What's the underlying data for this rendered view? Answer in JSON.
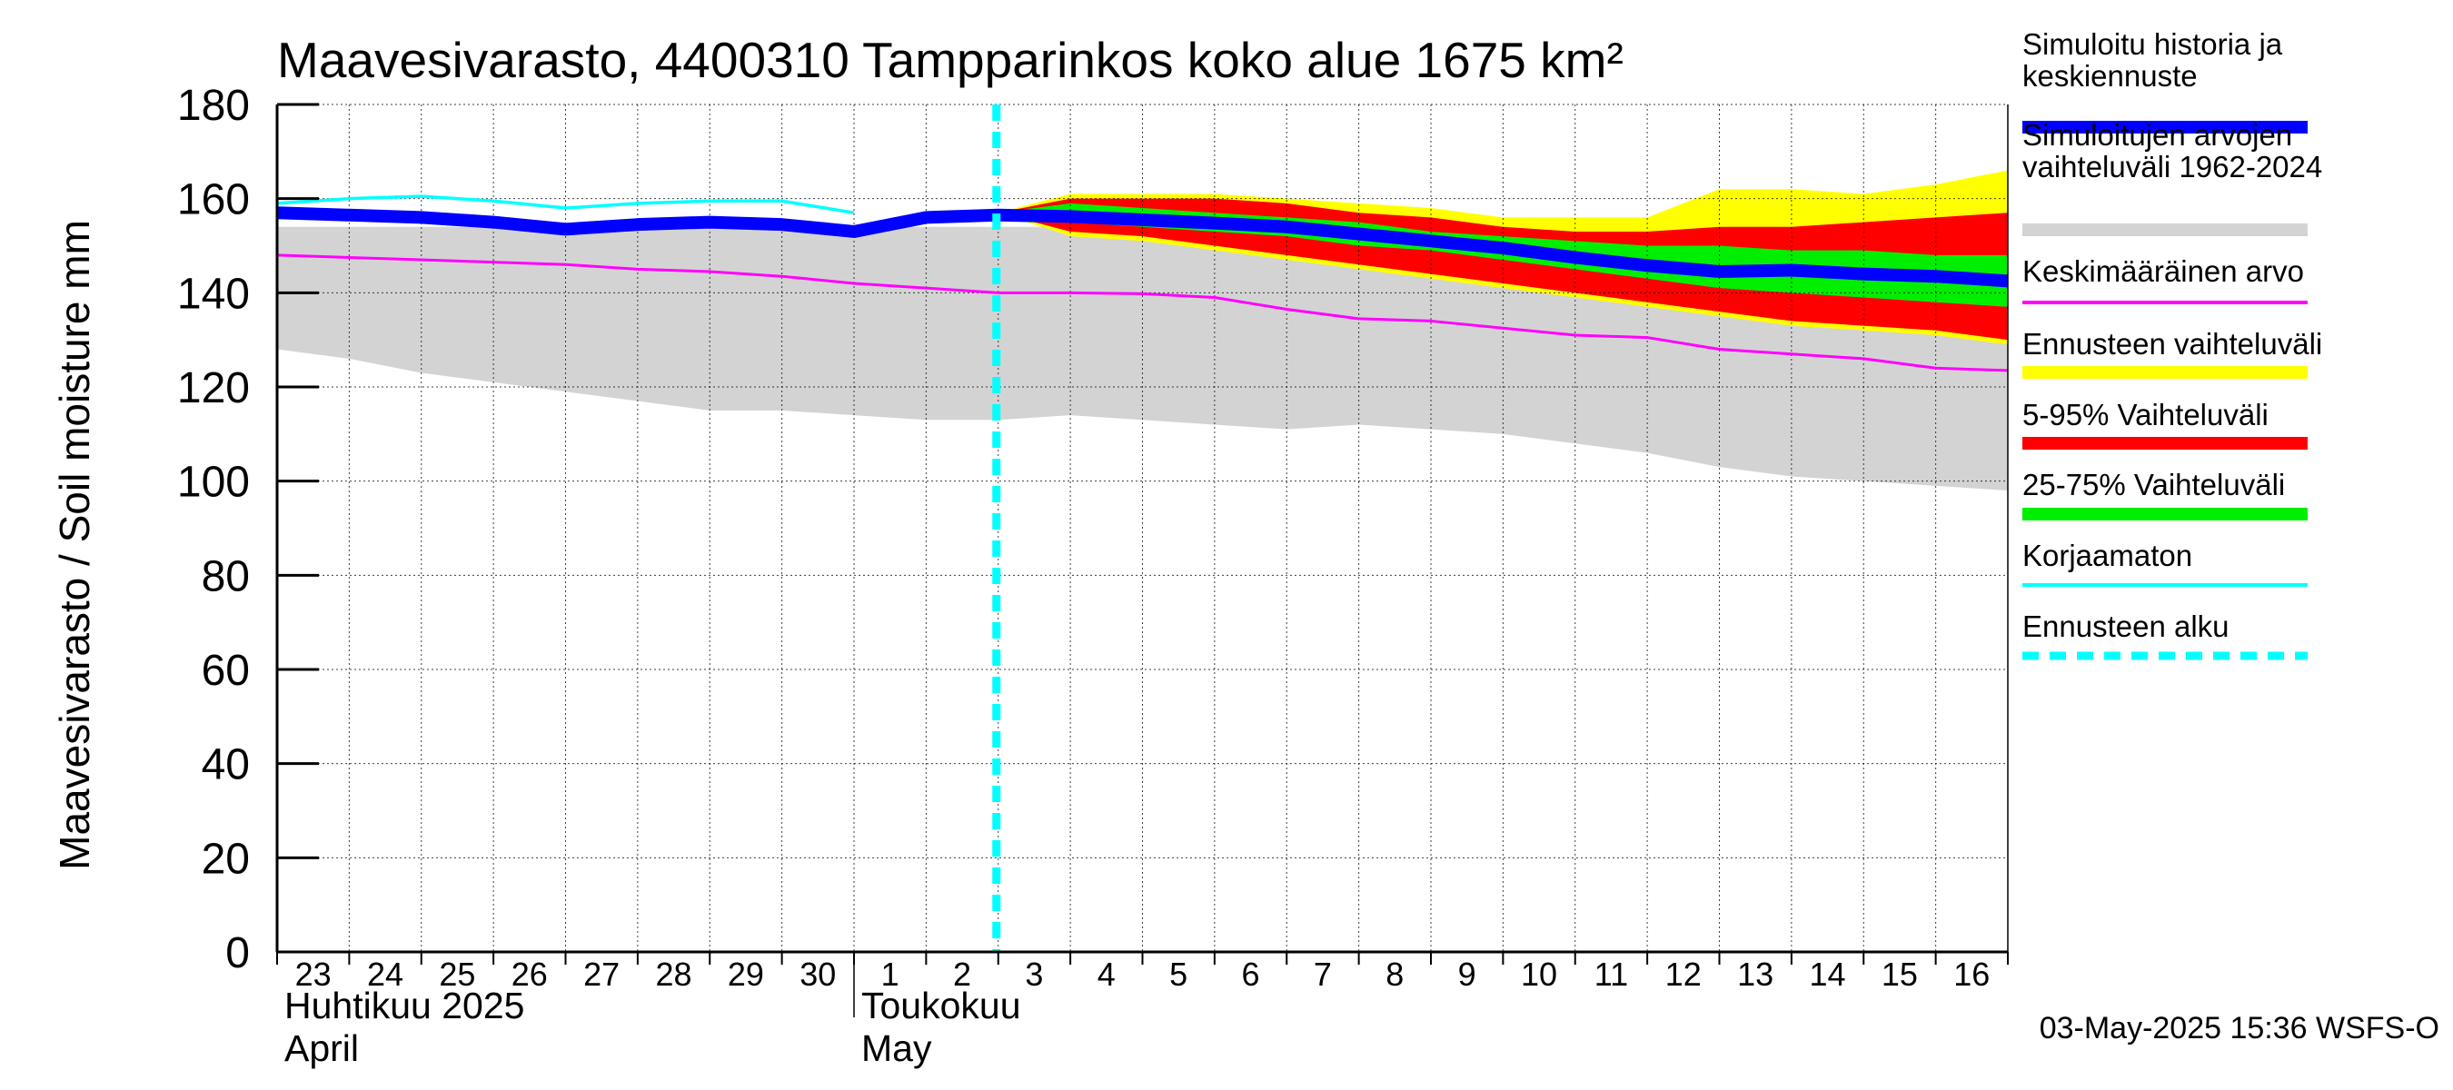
{
  "chart_data": {
    "type": "area",
    "title": "Maavesivarasto, 4400310 Tampparinkos koko alue 1675 km²",
    "ylabel": "Maavesivarasto / Soil moisture   mm",
    "ylim": [
      0,
      180
    ],
    "yticks": [
      0,
      20,
      40,
      60,
      80,
      100,
      120,
      140,
      160,
      180
    ],
    "x_days": [
      "23",
      "24",
      "25",
      "26",
      "27",
      "28",
      "29",
      "30",
      "1",
      "2",
      "3",
      "4",
      "5",
      "6",
      "7",
      "8",
      "9",
      "10",
      "11",
      "12",
      "13",
      "14",
      "15",
      "16"
    ],
    "x_range": [
      0,
      24
    ],
    "month_labels": [
      {
        "line1": "Huhtikuu  2025",
        "line2": "April",
        "start_day_index": 0
      },
      {
        "line1": "Toukokuu",
        "line2": "May",
        "start_day_index": 8
      }
    ],
    "month_divider_x": 8,
    "forecast_start_x": 10,
    "grid": true,
    "legend_position": "right",
    "legend": [
      {
        "label": "Simuloitu historia ja\nkeskiennuste",
        "color": "#0000ff",
        "style": "thick"
      },
      {
        "label": "Simuloitujen arvojen\nvaihteluväli 1962-2024",
        "color": "#d3d3d3",
        "style": "thick"
      },
      {
        "label": "Keskimääräinen arvo",
        "color": "#ff00ff",
        "style": "thin"
      },
      {
        "label": "Ennusteen vaihteluväli",
        "color": "#ffff00",
        "style": "thick"
      },
      {
        "label": "5-95% Vaihteluväli",
        "color": "#ff0000",
        "style": "thick"
      },
      {
        "label": "25-75% Vaihteluväli",
        "color": "#00ee00",
        "style": "thick"
      },
      {
        "label": "Korjaamaton",
        "color": "#00ffff",
        "style": "thin"
      },
      {
        "label": "Ennusteen alku",
        "color": "#00ffff",
        "style": "dashed"
      }
    ],
    "series": {
      "history_range": {
        "x": [
          0,
          1,
          2,
          3,
          4,
          5,
          6,
          7,
          8,
          9,
          10,
          11,
          12,
          13,
          14,
          15,
          16,
          17,
          18,
          19,
          20,
          21,
          22,
          23,
          24
        ],
        "upper": [
          154,
          154,
          154,
          154,
          154,
          154,
          154,
          154,
          154,
          154,
          154,
          154,
          154,
          153,
          152,
          152,
          151,
          150,
          149,
          148,
          147,
          146,
          146,
          146,
          146
        ],
        "lower": [
          128,
          126,
          123,
          121,
          119,
          117,
          115,
          115,
          114,
          113,
          113,
          114,
          113,
          112,
          111,
          112,
          111,
          110,
          108,
          106,
          103,
          101,
          100,
          99,
          98
        ]
      },
      "forecast_range": {
        "x": [
          10,
          11,
          12,
          13,
          14,
          15,
          16,
          17,
          18,
          19,
          20,
          21,
          22,
          23,
          24
        ],
        "upper": [
          157,
          161,
          161,
          161,
          160,
          159,
          158,
          156,
          156,
          156,
          162,
          162,
          161,
          163,
          166
        ],
        "lower": [
          157,
          152,
          151,
          149,
          147,
          145,
          143,
          141,
          139,
          137,
          135,
          133,
          132,
          131,
          129
        ]
      },
      "p5_95": {
        "x": [
          10,
          11,
          12,
          13,
          14,
          15,
          16,
          17,
          18,
          19,
          20,
          21,
          22,
          23,
          24
        ],
        "upper": [
          157,
          160,
          160,
          160,
          159,
          157,
          156,
          154,
          153,
          153,
          154,
          154,
          155,
          156,
          157
        ],
        "lower": [
          157,
          153,
          152,
          150,
          148,
          146,
          144,
          142,
          140,
          138,
          136,
          134,
          133,
          132,
          130
        ]
      },
      "p25_75": {
        "x": [
          10,
          11,
          12,
          13,
          14,
          15,
          16,
          17,
          18,
          19,
          20,
          21,
          22,
          23,
          24
        ],
        "upper": [
          157,
          159,
          158,
          157,
          156,
          155,
          153,
          152,
          151,
          150,
          150,
          149,
          149,
          148,
          148
        ],
        "lower": [
          157,
          155,
          154,
          153,
          152,
          150,
          149,
          147,
          145,
          143,
          141,
          140,
          139,
          138,
          137
        ]
      },
      "mean": {
        "x": [
          0,
          1,
          2,
          3,
          4,
          5,
          6,
          7,
          8,
          9,
          10,
          11,
          12,
          13,
          14,
          15,
          16,
          17,
          18,
          19,
          20,
          21,
          22,
          23,
          24
        ],
        "values": [
          148,
          147.5,
          147,
          146.5,
          146,
          145,
          144.5,
          143.5,
          142,
          141,
          140,
          140,
          139.8,
          139,
          136.5,
          134.5,
          134,
          132.5,
          131,
          130.5,
          128,
          127,
          126,
          124,
          123.5
        ]
      },
      "uncorrected": {
        "x": [
          0,
          1,
          2,
          3,
          4,
          5,
          6,
          7,
          8
        ],
        "values": [
          159,
          160,
          160.5,
          159.5,
          158,
          159,
          159.5,
          159.5,
          157
        ]
      },
      "simulated": {
        "x": [
          0,
          1,
          2,
          3,
          4,
          5,
          6,
          7,
          8,
          9,
          10,
          11,
          12,
          13,
          14,
          15,
          16,
          17,
          18,
          19,
          20,
          21,
          22,
          23,
          24
        ],
        "values": [
          157,
          156.5,
          156,
          155,
          153.5,
          154.5,
          155,
          154.5,
          153,
          156,
          156.5,
          156.2,
          155.5,
          154.8,
          154,
          152.5,
          151,
          149.5,
          147.5,
          145.8,
          144.5,
          144.8,
          144,
          143.5,
          142.5
        ]
      }
    }
  },
  "footer": {
    "timestamp": "03-May-2025 15:36 WSFS-O"
  }
}
